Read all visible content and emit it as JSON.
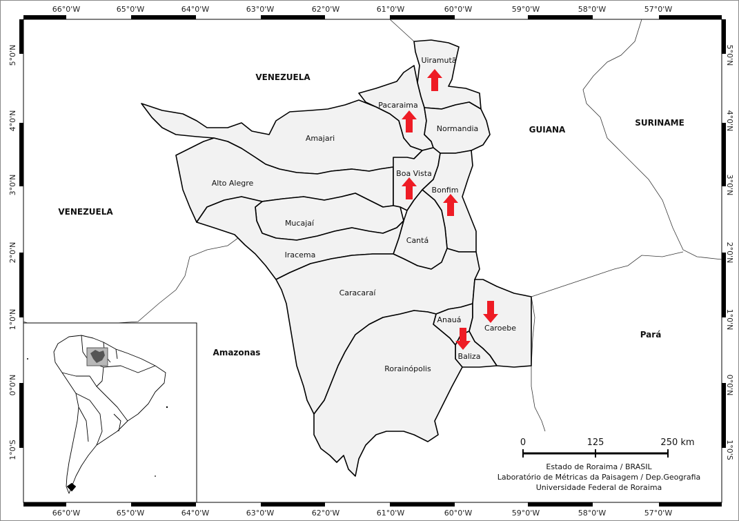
{
  "lon_labels": [
    "66°0'W",
    "65°0'W",
    "64°0'W",
    "63°0'W",
    "62°0'W",
    "61°0'W",
    "60°0'W",
    "59°0'W",
    "58°0'W",
    "57°0'W"
  ],
  "lat_labels": [
    "5°0'N",
    "4°0'N",
    "3°0'N",
    "2°0'N",
    "1°0'N",
    "0°0'N",
    "1°0'S"
  ],
  "countries": {
    "venezuela_north": "VENEZUELA",
    "venezuela_west": "VENEZUELA",
    "guiana": "GUIANA",
    "suriname": "SURINAME",
    "amazonas": "Amazonas",
    "para": "Pará"
  },
  "municipalities": {
    "uiramuta": "Uiramutã",
    "pacaraima": "Pacaraima",
    "normandia": "Normandia",
    "amajari": "Amajari",
    "alto_alegre": "Alto Alegre",
    "boa_vista": "Boa Vista",
    "bonfim": "Bonfim",
    "mucajai": "Mucajaí",
    "canta": "Cantá",
    "iracema": "Iracema",
    "caracarai": "Caracaraí",
    "anaua": "Anauá",
    "caroebe": "Caroebe",
    "baliza": "Baliza",
    "rorainopolis": "Rorainópolis"
  },
  "scale_bar": {
    "label_0": "0",
    "label_mid": "125",
    "label_end": "250 km"
  },
  "credits": {
    "line1": "Estado de Roraima / BRASIL",
    "line2": "Laboratório de Métricas da Paisagem / Dep.Geografia",
    "line3": "Universidade Federal de Roraima"
  },
  "colors": {
    "state_fill": "#f2f2f2",
    "arrow": "#ee1c25",
    "inset_highlight": "#9a9a9a"
  },
  "arrows": {
    "uiramuta": "up",
    "pacaraima": "up",
    "boa_vista": "up",
    "bonfim": "up",
    "caroebe": "down",
    "baliza": "down"
  }
}
